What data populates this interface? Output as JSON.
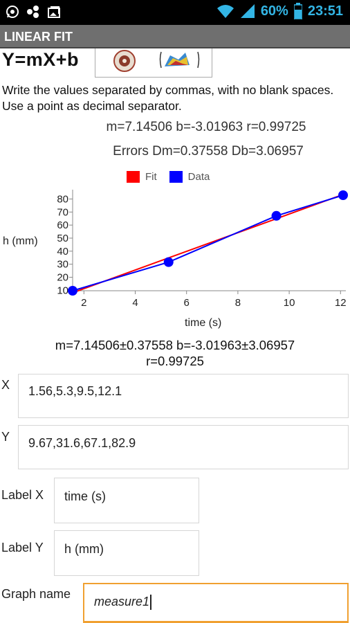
{
  "status_bar": {
    "battery": "60%",
    "time": "23:51",
    "icons": [
      "whatsapp-icon",
      "share-icon",
      "gallery-icon",
      "wifi-icon",
      "signal-icon",
      "battery-icon"
    ]
  },
  "app": {
    "title": "LINEAR FIT"
  },
  "header": {
    "equation": "Y=mX+b"
  },
  "instructions": "Write the values separated by commas, with no blank spaces. Use a point as decimal separator.",
  "results": {
    "line1": "m=7.14506 b=-3.01963 r=0.99725",
    "line2": "Errors Dm=0.37558 Db=3.06957"
  },
  "chart_data": {
    "type": "line",
    "series": [
      {
        "name": "Fit",
        "color": "#ff0000",
        "x": [
          1.56,
          12.1
        ],
        "y": [
          8.126,
          83.44
        ]
      },
      {
        "name": "Data",
        "color": "#0000ff",
        "x": [
          1.56,
          5.3,
          9.5,
          12.1
        ],
        "y": [
          9.67,
          31.6,
          67.1,
          82.9
        ]
      }
    ],
    "xlabel": "time (s)",
    "ylabel": "h (mm)",
    "x_ticks": [
      "2",
      "4",
      "6",
      "8",
      "10",
      "12"
    ],
    "y_ticks": [
      "10",
      "20",
      "30",
      "40",
      "50",
      "60",
      "70",
      "80"
    ],
    "xlim": [
      1.56,
      12.1
    ],
    "ylim": [
      9.67,
      82.9
    ],
    "legend_placement": "top"
  },
  "summary": {
    "line1": "m=7.14506±0.37558  b=-3.01963±3.06957",
    "line2": "r=0.99725"
  },
  "form": {
    "x_label": "X",
    "x_value": "1.56,5.3,9.5,12.1",
    "y_label": "Y",
    "y_value": "9.67,31.6,67.1,82.9",
    "label_x_label": "Label X",
    "label_x_value": "time (s)",
    "label_y_label": "Label Y",
    "label_y_value": "h (mm)",
    "graph_name_label": "Graph name",
    "graph_name_value": "measure1"
  }
}
